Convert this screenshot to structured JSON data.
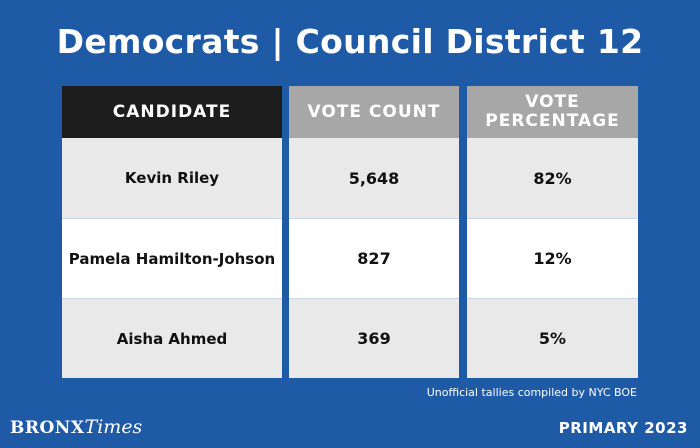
{
  "header": {
    "title": "Democrats | Council District 12"
  },
  "table": {
    "columns": [
      "CANDIDATE",
      "VOTE COUNT",
      "VOTE\nPERCENTAGE"
    ],
    "rows": [
      {
        "candidate": "Kevin Riley",
        "votes": "5,648",
        "percentage": "82%"
      },
      {
        "candidate": "Pamela Hamilton-Johson",
        "votes": "827",
        "percentage": "12%"
      },
      {
        "candidate": "Aisha Ahmed",
        "votes": "369",
        "percentage": "5%"
      }
    ]
  },
  "footnote": "Unofficial tallies compiled by NYC BOE",
  "brand": {
    "part1": "BRONX",
    "part2": "Times"
  },
  "badge": "PRIMARY 2023",
  "colors": {
    "background": "#1f5aa6",
    "header_dark": "#1e1d1e",
    "header_grey": "#a7a7a7",
    "row_shade": "#e9e9ea",
    "row_white": "#ffffff"
  }
}
